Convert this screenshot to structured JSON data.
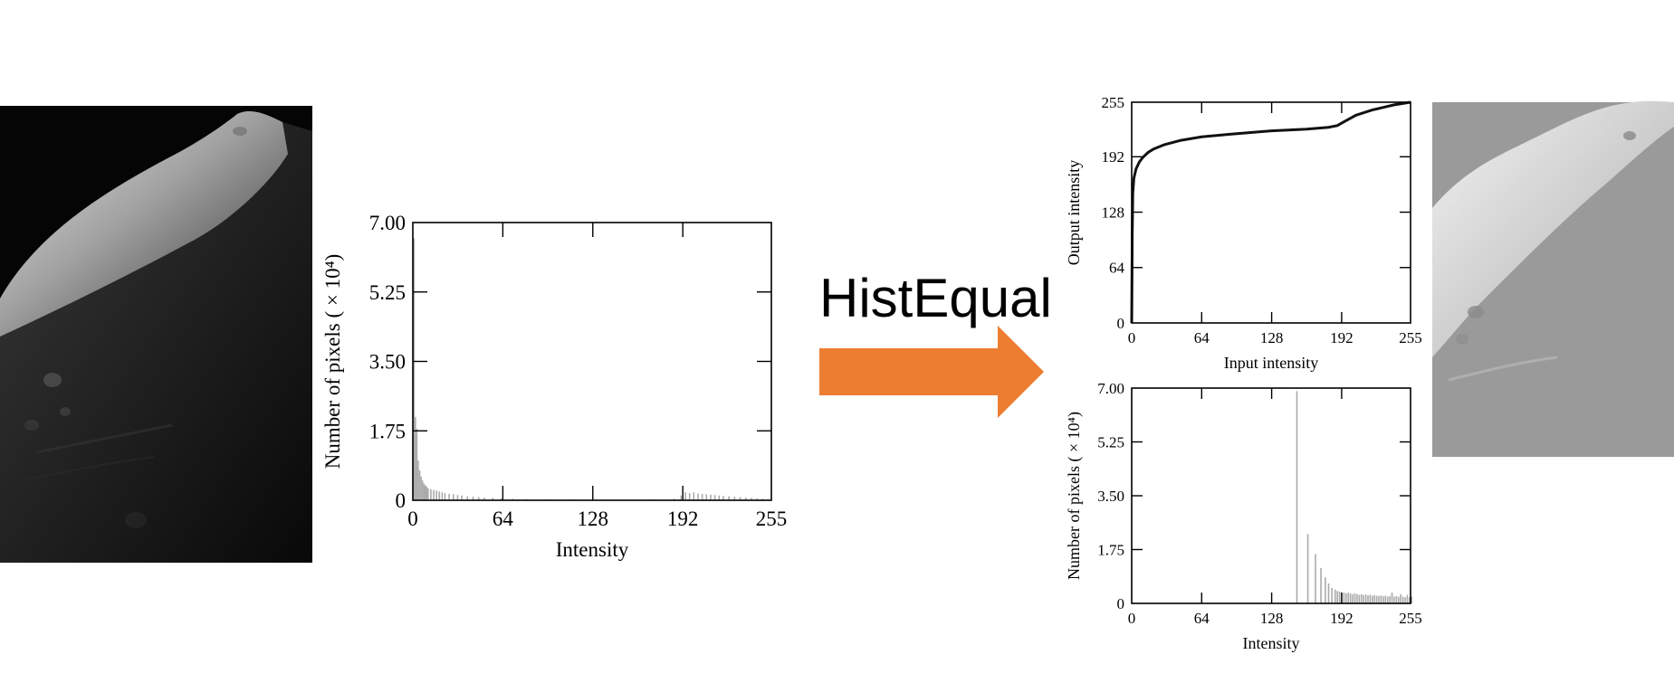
{
  "transform_label": "HistEqual",
  "arrow_color": "#ED7D31",
  "images": {
    "original": "dark-moon-surface-image",
    "equalized": "washed-out-moon-surface-image"
  },
  "chart_data": [
    {
      "type": "bar",
      "xlabel": "Intensity",
      "ylabel": "Number of pixels ( × 10⁴)",
      "xticks": [
        "0",
        "64",
        "128",
        "192",
        "255"
      ],
      "yticks": [
        "0",
        "1.75",
        "3.50",
        "5.25",
        "7.00"
      ],
      "xlim": [
        0,
        255
      ],
      "ylim": [
        0,
        7.0
      ],
      "bar_color": "#aaaaaa",
      "bars": [
        {
          "x": 0,
          "y": 6.6
        },
        {
          "x": 1,
          "y": 2.1
        },
        {
          "x": 2,
          "y": 1.8
        },
        {
          "x": 3,
          "y": 1.0
        },
        {
          "x": 4,
          "y": 0.75
        },
        {
          "x": 5,
          "y": 0.6
        },
        {
          "x": 6,
          "y": 0.5
        },
        {
          "x": 7,
          "y": 0.42
        },
        {
          "x": 8,
          "y": 0.38
        },
        {
          "x": 9,
          "y": 0.34
        },
        {
          "x": 10,
          "y": 0.3
        },
        {
          "x": 12,
          "y": 0.28
        },
        {
          "x": 14,
          "y": 0.26
        },
        {
          "x": 16,
          "y": 0.24
        },
        {
          "x": 18,
          "y": 0.22
        },
        {
          "x": 20,
          "y": 0.2
        },
        {
          "x": 22,
          "y": 0.18
        },
        {
          "x": 25,
          "y": 0.16
        },
        {
          "x": 28,
          "y": 0.15
        },
        {
          "x": 31,
          "y": 0.13
        },
        {
          "x": 34,
          "y": 0.12
        },
        {
          "x": 38,
          "y": 0.1
        },
        {
          "x": 42,
          "y": 0.09
        },
        {
          "x": 46,
          "y": 0.08
        },
        {
          "x": 50,
          "y": 0.07
        },
        {
          "x": 56,
          "y": 0.06
        },
        {
          "x": 62,
          "y": 0.05
        },
        {
          "x": 70,
          "y": 0.04
        },
        {
          "x": 80,
          "y": 0.03
        },
        {
          "x": 95,
          "y": 0.02
        },
        {
          "x": 110,
          "y": 0.02
        },
        {
          "x": 130,
          "y": 0.01
        },
        {
          "x": 150,
          "y": 0.01
        },
        {
          "x": 170,
          "y": 0.02
        },
        {
          "x": 185,
          "y": 0.04
        },
        {
          "x": 190,
          "y": 0.12
        },
        {
          "x": 193,
          "y": 0.2
        },
        {
          "x": 196,
          "y": 0.18
        },
        {
          "x": 199,
          "y": 0.2
        },
        {
          "x": 202,
          "y": 0.17
        },
        {
          "x": 205,
          "y": 0.16
        },
        {
          "x": 208,
          "y": 0.15
        },
        {
          "x": 211,
          "y": 0.14
        },
        {
          "x": 214,
          "y": 0.13
        },
        {
          "x": 217,
          "y": 0.12
        },
        {
          "x": 220,
          "y": 0.11
        },
        {
          "x": 224,
          "y": 0.1
        },
        {
          "x": 228,
          "y": 0.09
        },
        {
          "x": 232,
          "y": 0.08
        },
        {
          "x": 236,
          "y": 0.07
        },
        {
          "x": 240,
          "y": 0.06
        },
        {
          "x": 244,
          "y": 0.05
        },
        {
          "x": 248,
          "y": 0.04
        },
        {
          "x": 252,
          "y": 0.03
        }
      ]
    },
    {
      "type": "line",
      "xlabel": "Input intensity",
      "ylabel": "Output intensity",
      "xticks": [
        "0",
        "64",
        "128",
        "192",
        "255"
      ],
      "yticks": [
        "0",
        "64",
        "128",
        "192",
        "255"
      ],
      "xlim": [
        0,
        255
      ],
      "ylim": [
        0,
        255
      ],
      "line_color": "#111111",
      "points": [
        [
          0,
          0
        ],
        [
          0.5,
          100
        ],
        [
          1,
          150
        ],
        [
          2,
          167
        ],
        [
          4,
          178
        ],
        [
          7,
          186
        ],
        [
          10,
          191
        ],
        [
          15,
          197
        ],
        [
          20,
          201
        ],
        [
          30,
          206
        ],
        [
          45,
          211
        ],
        [
          64,
          215
        ],
        [
          90,
          218
        ],
        [
          128,
          222
        ],
        [
          160,
          224
        ],
        [
          180,
          226
        ],
        [
          188,
          228
        ],
        [
          195,
          233
        ],
        [
          205,
          240
        ],
        [
          220,
          246
        ],
        [
          240,
          252
        ],
        [
          255,
          255
        ]
      ]
    },
    {
      "type": "bar",
      "xlabel": "Intensity",
      "ylabel": "Number of pixels ( × 10⁴)",
      "xticks": [
        "0",
        "64",
        "128",
        "192",
        "255"
      ],
      "yticks": [
        "0",
        "1.75",
        "3.50",
        "5.25",
        "7.00"
      ],
      "xlim": [
        0,
        255
      ],
      "ylim": [
        0,
        7.0
      ],
      "bar_color": "#aaaaaa",
      "bars": [
        {
          "x": 150,
          "y": 6.9
        },
        {
          "x": 160,
          "y": 2.25
        },
        {
          "x": 167,
          "y": 1.6
        },
        {
          "x": 172,
          "y": 1.15
        },
        {
          "x": 176,
          "y": 0.85
        },
        {
          "x": 179,
          "y": 0.65
        },
        {
          "x": 182,
          "y": 0.5
        },
        {
          "x": 185,
          "y": 0.45
        },
        {
          "x": 187,
          "y": 0.4
        },
        {
          "x": 189,
          "y": 0.38
        },
        {
          "x": 191,
          "y": 0.36
        },
        {
          "x": 193,
          "y": 0.35
        },
        {
          "x": 195,
          "y": 0.33
        },
        {
          "x": 197,
          "y": 0.35
        },
        {
          "x": 199,
          "y": 0.32
        },
        {
          "x": 201,
          "y": 0.3
        },
        {
          "x": 203,
          "y": 0.33
        },
        {
          "x": 205,
          "y": 0.3
        },
        {
          "x": 207,
          "y": 0.28
        },
        {
          "x": 209,
          "y": 0.3
        },
        {
          "x": 211,
          "y": 0.27
        },
        {
          "x": 213,
          "y": 0.29
        },
        {
          "x": 215,
          "y": 0.26
        },
        {
          "x": 217,
          "y": 0.28
        },
        {
          "x": 219,
          "y": 0.25
        },
        {
          "x": 221,
          "y": 0.27
        },
        {
          "x": 223,
          "y": 0.25
        },
        {
          "x": 225,
          "y": 0.24
        },
        {
          "x": 227,
          "y": 0.26
        },
        {
          "x": 229,
          "y": 0.23
        },
        {
          "x": 231,
          "y": 0.25
        },
        {
          "x": 233,
          "y": 0.22
        },
        {
          "x": 235,
          "y": 0.24
        },
        {
          "x": 237,
          "y": 0.36
        },
        {
          "x": 239,
          "y": 0.22
        },
        {
          "x": 241,
          "y": 0.24
        },
        {
          "x": 243,
          "y": 0.21
        },
        {
          "x": 245,
          "y": 0.3
        },
        {
          "x": 247,
          "y": 0.22
        },
        {
          "x": 249,
          "y": 0.2
        },
        {
          "x": 251,
          "y": 0.28
        },
        {
          "x": 253,
          "y": 0.2
        },
        {
          "x": 255,
          "y": 0.22
        }
      ]
    }
  ]
}
